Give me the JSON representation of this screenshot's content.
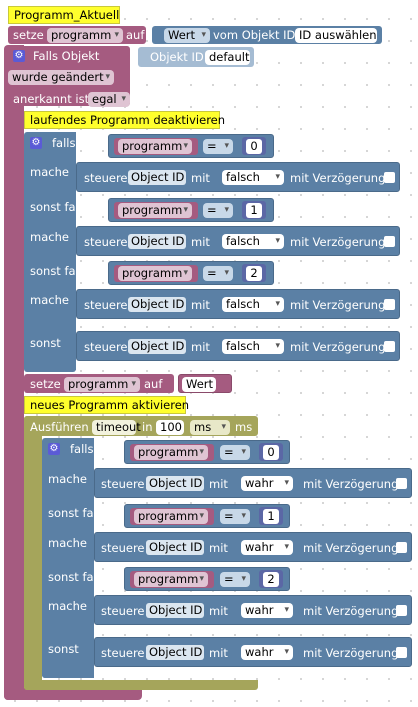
{
  "colors": {
    "variable": "#a55b80",
    "logic": "#5b80a5",
    "number": "#5b67a5",
    "timer": "#a5a55b",
    "comment": "#ffff2d"
  },
  "comments": {
    "top": "Programm_Aktuell",
    "deactivate": "laufendes Programm deaktivieren",
    "activate": "neues Programm aktivieren"
  },
  "set_top": {
    "label_set": "setze",
    "var": "programm",
    "label_to": "auf",
    "value_dd": "Wert",
    "label_from": "vom Objekt ID",
    "select": "ID auswählen"
  },
  "trigger": {
    "label": "Falls Objekt",
    "object_label": "Objekt ID",
    "object_value": "default",
    "change_dd": "wurde geändert",
    "ack_label": "anerkannt ist",
    "ack_dd": "egal"
  },
  "labels": {
    "if": "falls",
    "do": "mache",
    "elseif": "sonst falls",
    "else": "sonst",
    "control": "steuere",
    "object_id": "Object ID",
    "with": "mit",
    "delay": "mit Verzögerung"
  },
  "deactivate": {
    "conditions": [
      {
        "var": "programm",
        "op": "=",
        "num": "0"
      },
      {
        "var": "programm",
        "op": "=",
        "num": "1"
      },
      {
        "var": "programm",
        "op": "=",
        "num": "2"
      }
    ],
    "value": "falsch"
  },
  "set_mid": {
    "label_set": "setze",
    "var": "programm",
    "label_to": "auf",
    "value": "Wert"
  },
  "timeout": {
    "label": "Ausführen",
    "name": "timeout",
    "label_in": "in",
    "amount": "100",
    "unit_dd": "ms",
    "unit": "ms"
  },
  "activate": {
    "conditions": [
      {
        "var": "programm",
        "op": "=",
        "num": "0"
      },
      {
        "var": "programm",
        "op": "=",
        "num": "1"
      },
      {
        "var": "programm",
        "op": "=",
        "num": "2"
      }
    ],
    "value": "wahr"
  }
}
